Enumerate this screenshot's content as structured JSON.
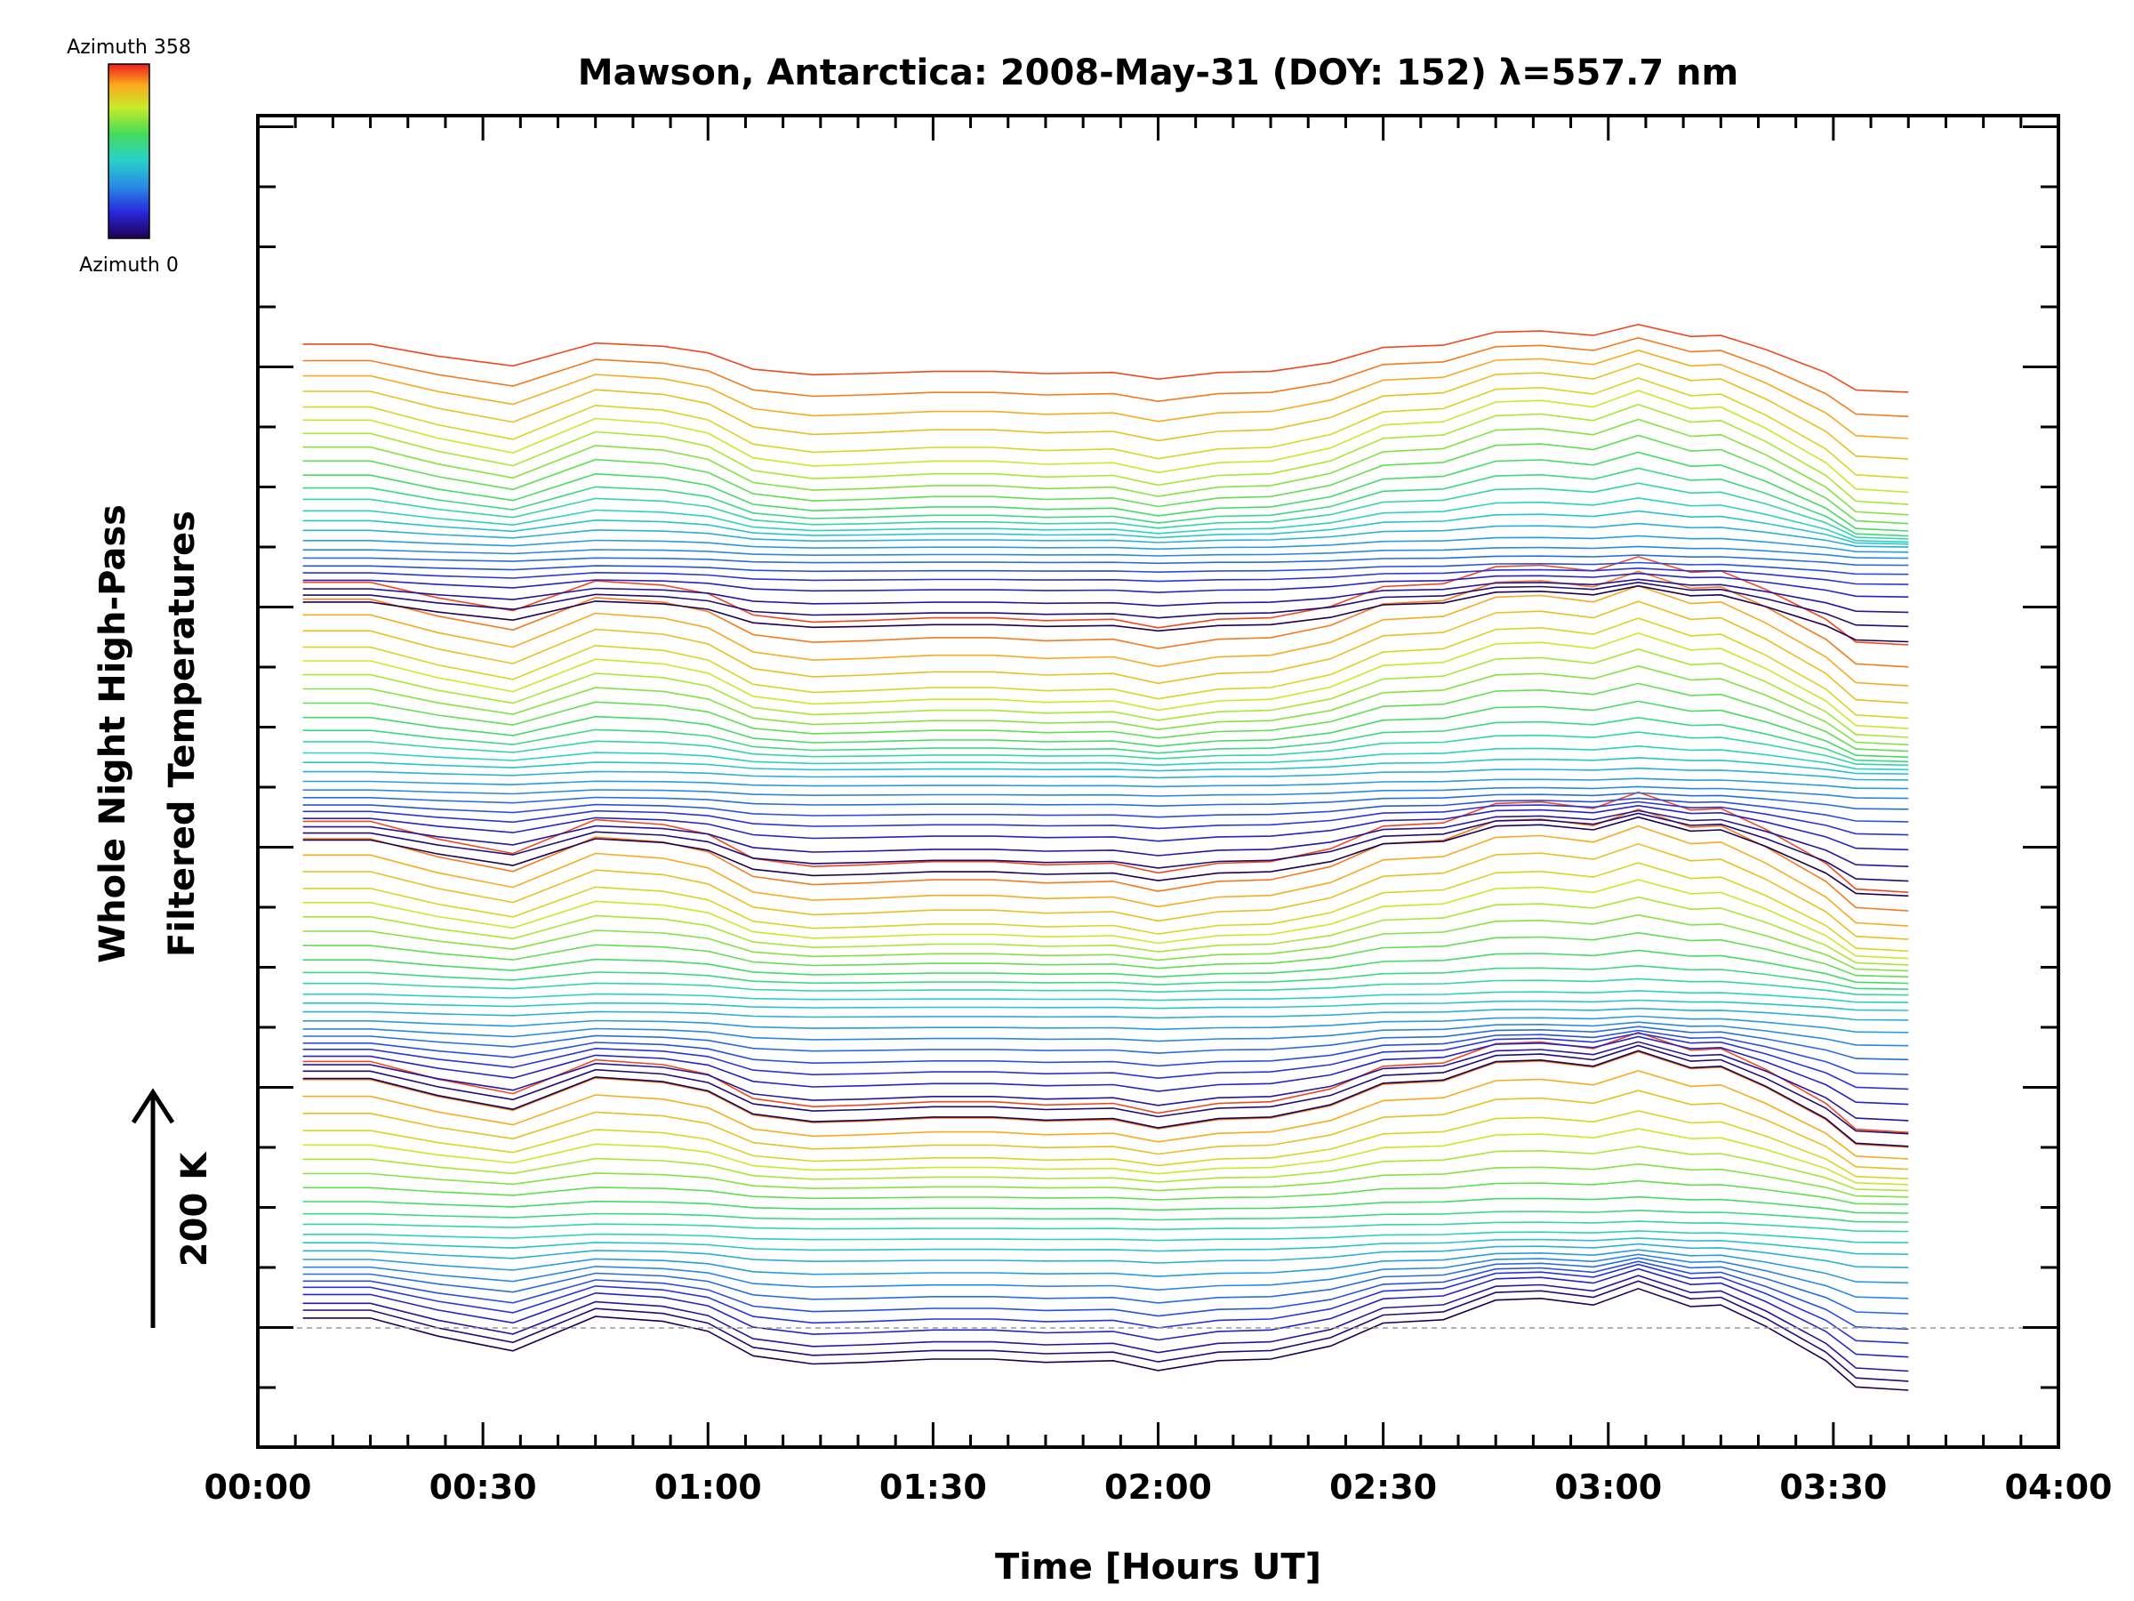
{
  "chart_data": {
    "type": "line",
    "title": "Mawson, Antarctica: 2008-May-31 (DOY: 152) λ=557.7 nm",
    "xlabel": "Time [Hours UT]",
    "ylabel_lines": [
      "Whole Night High-Pass",
      "Filtered Temperatures"
    ],
    "scale_annotation": "200 K",
    "x_ticks": [
      "00:00",
      "00:30",
      "01:00",
      "01:30",
      "02:00",
      "02:30",
      "03:00",
      "03:30",
      "04:00"
    ],
    "xlim_hours": [
      0,
      4
    ],
    "colorbar": {
      "top_label": "Azimuth 358",
      "bottom_label": "Azimuth 0",
      "colormap": "rainbow"
    },
    "baseline_dashed": true,
    "x": [
      0.1,
      0.25,
      0.4,
      0.5667,
      0.75,
      0.9,
      1.0,
      1.1,
      1.2333,
      1.35,
      1.5,
      1.6333,
      1.75,
      1.9,
      2.0,
      2.1333,
      2.25,
      2.3833,
      2.5,
      2.6333,
      2.75,
      2.85,
      2.9667,
      3.0667,
      3.1833,
      3.25,
      3.35,
      3.4833,
      3.55,
      3.6667
    ],
    "base_profile": [
      0.3,
      0.3,
      -0.25,
      -0.7,
      0.35,
      0.2,
      -0.1,
      -0.85,
      -1.1,
      -1.05,
      -0.95,
      -0.95,
      -1.05,
      -1.0,
      -1.3,
      -1.0,
      -0.95,
      -0.55,
      0.15,
      0.25,
      0.85,
      0.9,
      0.7,
      1.2,
      0.65,
      0.7,
      0.05,
      -1.0,
      -1.8,
      -1.9
    ],
    "series_azimuths": [
      0,
      15,
      30,
      45,
      60,
      75,
      90,
      105,
      120,
      135,
      150,
      165,
      180,
      195,
      210,
      225,
      240,
      255,
      270,
      285,
      300,
      315,
      330,
      345
    ],
    "series_offsets": [
      [
        0.0,
        0.55,
        1.05,
        1.7,
        2.25,
        2.75,
        3.3,
        3.85,
        4.45,
        5.1,
        5.7,
        6.3,
        7.0,
        7.7,
        8.5,
        9.4,
        10.3,
        11.2,
        12.1,
        13.0,
        14.1,
        15.2,
        16.3,
        17.5
      ]
    ],
    "rows_per_block": 4
  }
}
